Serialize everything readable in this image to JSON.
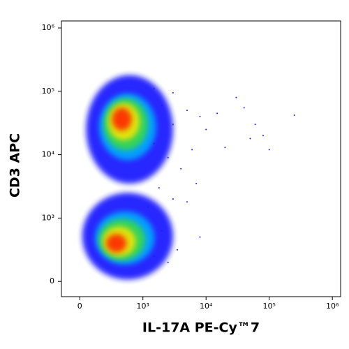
{
  "chart_data": {
    "type": "density",
    "x_label": "IL-17A PE-Cy™7",
    "y_label": "CD3 APC",
    "scale": "biexponential",
    "xlim": [
      -290,
      1350000
    ],
    "ylim": [
      -240,
      1290000
    ],
    "xticks": [
      0,
      {
        "value": 1000,
        "label": "10³"
      },
      {
        "value": 10000,
        "label": "10⁴"
      },
      {
        "value": 100000,
        "label": "10⁵"
      },
      {
        "value": 1000000,
        "label": "10⁶"
      }
    ],
    "yticks": [
      0,
      {
        "value": 1000,
        "label": "10³"
      },
      {
        "value": 10000,
        "label": "10⁴"
      },
      {
        "value": 100000,
        "label": "10⁵"
      },
      {
        "value": 1000000,
        "label": "10⁶"
      }
    ],
    "colors": [
      "#1a1aff",
      "#00b4ff",
      "#3cdc3c",
      "#ffe600",
      "#ff1a00"
    ],
    "populations": [
      {
        "x": 620,
        "y": 42000,
        "xrange": [
          100,
          3000
        ],
        "yrange": [
          3500,
          180000
        ]
      },
      {
        "x": 510,
        "y": 560,
        "xrange": [
          40,
          3000
        ],
        "yrange": [
          30,
          2500
        ]
      }
    ],
    "events": {
      "color": "#1a1aff",
      "x": [
        2000,
        3000,
        5000,
        8000,
        15000,
        30000,
        40000,
        250000,
        80000,
        100000,
        1500,
        2500,
        4000,
        6000,
        20000,
        50000,
        1800,
        3000,
        5000,
        8000,
        2000,
        3500,
        1500,
        2500,
        1200,
        10000,
        60000,
        3000,
        1500,
        7000
      ],
      "y": [
        60000,
        30000,
        50000,
        40000,
        45000,
        80000,
        55000,
        42000,
        20000,
        12000,
        15000,
        9000,
        6000,
        12000,
        13000,
        18000,
        3000,
        2000,
        1800,
        700,
        800,
        500,
        400,
        300,
        1500,
        25000,
        30000,
        95000,
        110000,
        3500
      ]
    }
  }
}
